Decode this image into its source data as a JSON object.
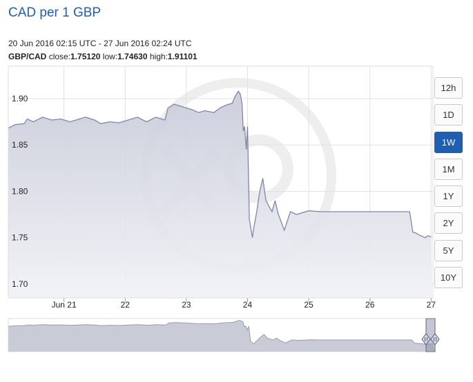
{
  "header": {
    "title": "CAD per 1 GBP",
    "date_range": "20 Jun 2016 02:15 UTC - 27 Jun 2016 02:24 UTC",
    "pair": "GBP/CAD",
    "close_label": "close:",
    "close_value": "1.75120",
    "low_label": "low:",
    "low_value": "1.74630",
    "high_label": "high:",
    "high_value": "1.91101"
  },
  "range_buttons": [
    {
      "label": "12h",
      "active": false
    },
    {
      "label": "1D",
      "active": false
    },
    {
      "label": "1W",
      "active": true
    },
    {
      "label": "1M",
      "active": false
    },
    {
      "label": "1Y",
      "active": false
    },
    {
      "label": "2Y",
      "active": false
    },
    {
      "label": "5Y",
      "active": false
    },
    {
      "label": "10Y",
      "active": false
    }
  ],
  "colors": {
    "line": "#7f86a6",
    "area_top": "#c7cad9",
    "area_bottom": "#f1f2f6",
    "grid": "#e1e1e1",
    "accent": "#1f5fb0",
    "watermark": "#eeeeee"
  },
  "chart_data": {
    "type": "area",
    "title": "CAD per 1 GBP",
    "xlabel": "",
    "ylabel": "",
    "xlim": [
      20.09,
      27.03
    ],
    "ylim": [
      1.685,
      1.935
    ],
    "yticks": [
      1.7,
      1.75,
      1.8,
      1.85,
      1.9
    ],
    "ytick_labels": [
      "1.70",
      "1.75",
      "1.80",
      "1.85",
      "1.90"
    ],
    "xticks": [
      21,
      22,
      23,
      24,
      25,
      26,
      27
    ],
    "xtick_labels": [
      "Jun 21",
      "22",
      "23",
      "24",
      "25",
      "26",
      "27"
    ],
    "grid": true,
    "legend": "none",
    "series": [
      {
        "x": [
          20.09,
          20.2,
          20.35,
          20.4,
          20.5,
          20.65,
          20.8,
          20.95,
          21.1,
          21.25,
          21.35,
          21.5,
          21.6,
          21.75,
          21.9,
          22.05,
          22.2,
          22.35,
          22.5,
          22.65,
          22.7,
          22.8,
          22.9,
          23.0,
          23.1,
          23.2,
          23.3,
          23.45,
          23.55,
          23.65,
          23.75,
          23.8,
          23.85,
          23.88,
          23.91,
          23.93,
          23.95,
          23.98,
          24.0,
          24.03,
          24.06,
          24.08,
          24.1,
          24.15,
          24.2,
          24.25,
          24.3,
          24.35,
          24.4,
          24.45,
          24.5,
          24.6,
          24.7,
          24.8,
          25.0,
          25.2,
          25.5,
          25.8,
          26.1,
          26.4,
          26.65,
          26.7,
          26.75,
          26.8,
          26.9,
          26.95,
          27.0
        ],
        "y": [
          1.868,
          1.872,
          1.873,
          1.878,
          1.875,
          1.88,
          1.877,
          1.878,
          1.875,
          1.878,
          1.88,
          1.877,
          1.873,
          1.875,
          1.874,
          1.877,
          1.88,
          1.875,
          1.88,
          1.877,
          1.89,
          1.894,
          1.892,
          1.89,
          1.888,
          1.885,
          1.887,
          1.885,
          1.89,
          1.893,
          1.895,
          1.903,
          1.908,
          1.905,
          1.895,
          1.865,
          1.87,
          1.845,
          1.87,
          1.77,
          1.758,
          1.75,
          1.76,
          1.778,
          1.8,
          1.814,
          1.79,
          1.784,
          1.778,
          1.79,
          1.776,
          1.758,
          1.778,
          1.775,
          1.779,
          1.778,
          1.778,
          1.778,
          1.778,
          1.778,
          1.778,
          1.756,
          1.755,
          1.753,
          1.75,
          1.752,
          1.751
        ]
      }
    ]
  }
}
